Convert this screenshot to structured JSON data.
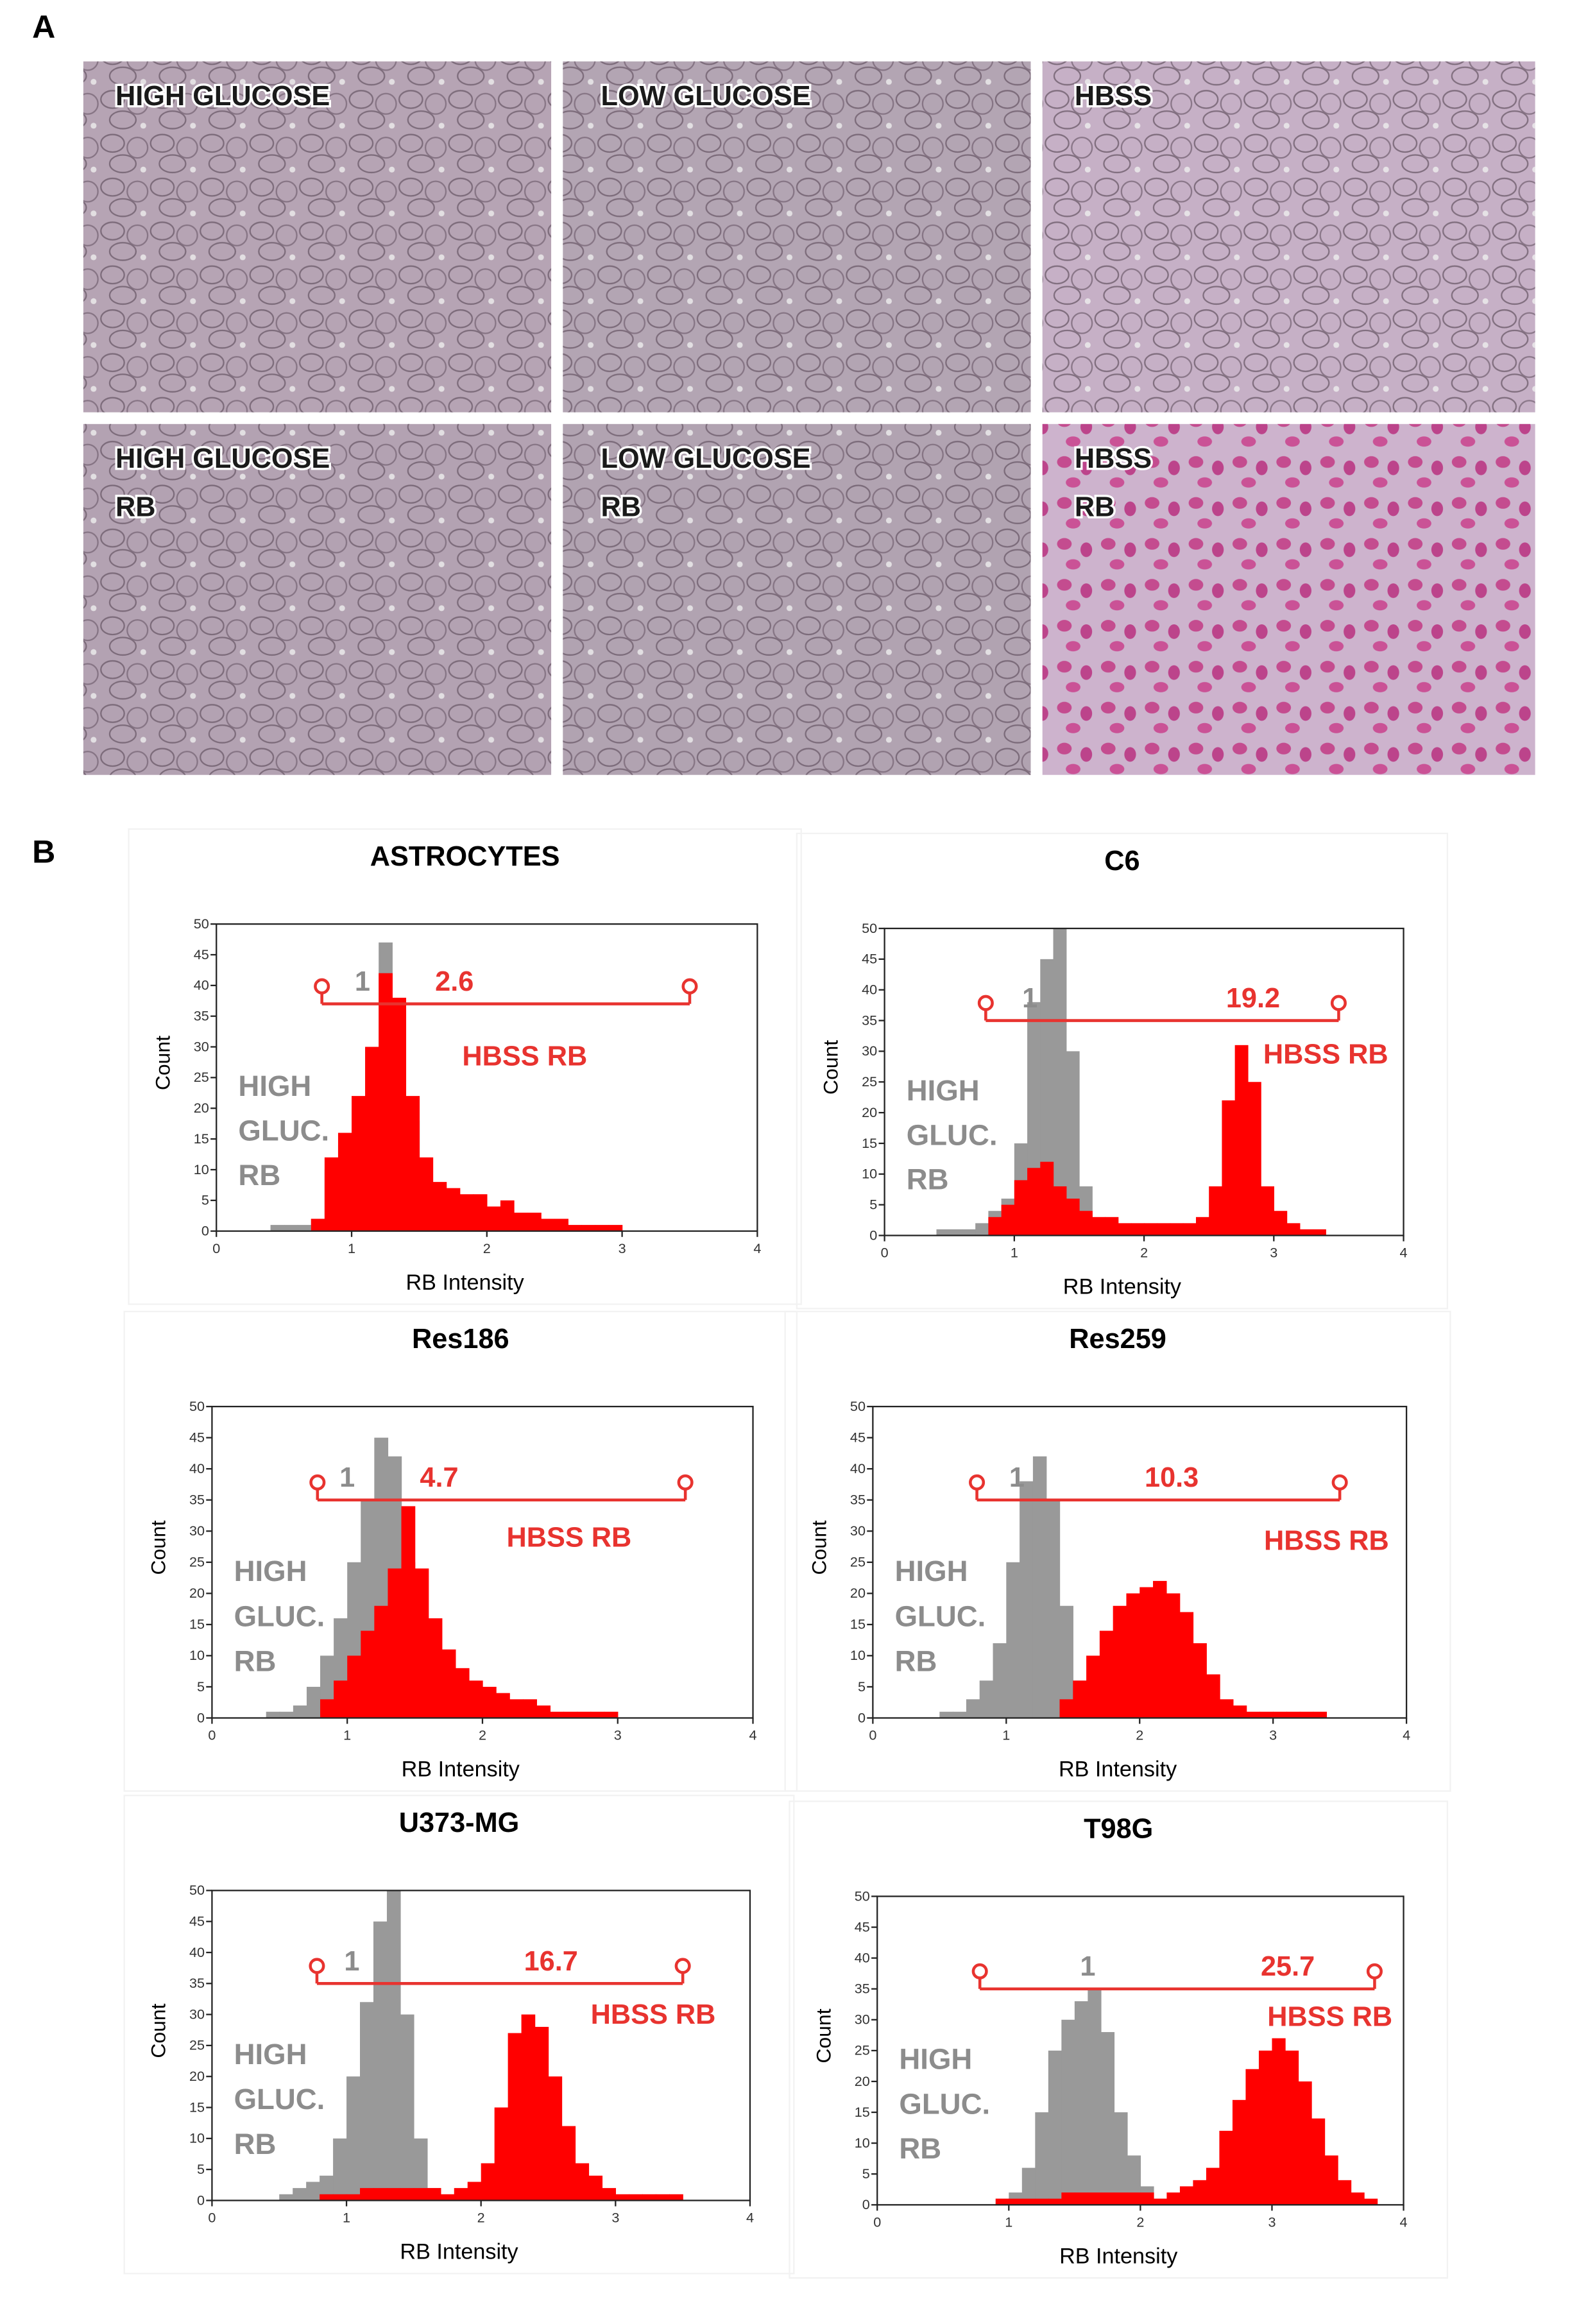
{
  "panel_a": {
    "label": "A",
    "images": [
      {
        "lines": [
          "HIGH GLUCOSE"
        ]
      },
      {
        "lines": [
          "LOW GLUCOSE"
        ]
      },
      {
        "lines": [
          "HBSS"
        ]
      },
      {
        "lines": [
          "HIGH GLUCOSE",
          "RB"
        ]
      },
      {
        "lines": [
          "LOW GLUCOSE",
          "RB"
        ]
      },
      {
        "lines": [
          "HBSS",
          "RB"
        ]
      }
    ]
  },
  "panel_b": {
    "label": "B",
    "xlabel": "RB Intensity",
    "ylabel": "Count",
    "xlim": [
      0,
      4
    ],
    "ylim": [
      0,
      50
    ],
    "xticks": [
      0,
      1,
      2,
      3,
      4
    ],
    "yticks": [
      0,
      5,
      10,
      15,
      20,
      25,
      30,
      35,
      40,
      45,
      50
    ],
    "bins": [
      0,
      0.1,
      0.2,
      0.3,
      0.4,
      0.5,
      0.6,
      0.7,
      0.8,
      0.9,
      1,
      1.1,
      1.2,
      1.3,
      1.4,
      1.5,
      1.6,
      1.7,
      1.8,
      1.9,
      2,
      2.1,
      2.2,
      2.3,
      2.4,
      2.5,
      2.6,
      2.7,
      2.8,
      2.9,
      3,
      3.1,
      3.2,
      3.3,
      3.4,
      3.5,
      3.6,
      3.7,
      3.8,
      3.9,
      4
    ],
    "charts": [
      {
        "type": "histogram",
        "title": "ASTROCYTES",
        "gate": [
          0.78,
          3.5
        ],
        "gate_y": 37,
        "gate_labels": [
          1,
          2.6
        ],
        "series": [
          {
            "name": [
              "HIGH",
              "GLUC.",
              "RB"
            ],
            "color": "#999999",
            "values": [
              0,
              0,
              0,
              0,
              1,
              1,
              1,
              2,
              10,
              14,
              20,
              30,
              47,
              36,
              18,
              6,
              2,
              1,
              0,
              0,
              0,
              0,
              0,
              0,
              0,
              0,
              0,
              0,
              0,
              0,
              0,
              0,
              0,
              0,
              0,
              0,
              0,
              0,
              0,
              0
            ]
          },
          {
            "name": "HBSS RB",
            "color": "#ff0000",
            "values": [
              0,
              0,
              0,
              0,
              0,
              0,
              0,
              2,
              12,
              16,
              22,
              30,
              42,
              38,
              22,
              12,
              8,
              7,
              6,
              6,
              4,
              5,
              3,
              3,
              2,
              2,
              1,
              1,
              1,
              1,
              0,
              0,
              0,
              0,
              0,
              0,
              0,
              0,
              0,
              0
            ]
          }
        ]
      },
      {
        "type": "histogram",
        "title": "C6",
        "gate": [
          0.78,
          3.5
        ],
        "gate_y": 35,
        "gate_labels": [
          1,
          19.2
        ],
        "series": [
          {
            "name": [
              "HIGH",
              "GLUC.",
              "RB"
            ],
            "color": "#999999",
            "values": [
              0,
              0,
              0,
              0,
              1,
              1,
              1,
              2,
              4,
              6,
              15,
              38,
              45,
              50,
              30,
              8,
              2,
              0,
              0,
              0,
              0,
              0,
              0,
              0,
              0,
              0,
              0,
              0,
              0,
              0,
              0,
              0,
              0,
              0,
              0,
              0,
              0,
              0,
              0,
              0
            ]
          },
          {
            "name": "HBSS RB",
            "color": "#ff0000",
            "values": [
              0,
              0,
              0,
              0,
              0,
              0,
              0,
              0,
              3,
              5,
              9,
              11,
              12,
              8,
              6,
              4,
              3,
              3,
              2,
              2,
              2,
              2,
              2,
              2,
              3,
              8,
              22,
              31,
              25,
              8,
              4,
              2,
              1,
              1,
              0,
              0,
              0,
              0,
              0,
              0
            ]
          }
        ]
      },
      {
        "type": "histogram",
        "title": "Res186",
        "gate": [
          0.78,
          3.5
        ],
        "gate_y": 35,
        "gate_labels": [
          1,
          4.7
        ],
        "series": [
          {
            "name": [
              "HIGH",
              "GLUC.",
              "RB"
            ],
            "color": "#999999",
            "values": [
              0,
              0,
              0,
              0,
              1,
              1,
              2,
              5,
              10,
              16,
              25,
              35,
              45,
              42,
              25,
              10,
              3,
              1,
              0,
              0,
              0,
              0,
              0,
              0,
              0,
              0,
              0,
              0,
              0,
              0,
              0,
              0,
              0,
              0,
              0,
              0,
              0,
              0,
              0,
              0
            ]
          },
          {
            "name": "HBSS RB",
            "color": "#ff0000",
            "values": [
              0,
              0,
              0,
              0,
              0,
              0,
              0,
              0,
              3,
              6,
              10,
              14,
              18,
              24,
              34,
              24,
              16,
              11,
              8,
              6,
              5,
              4,
              3,
              3,
              2,
              1,
              1,
              1,
              1,
              1,
              0,
              0,
              0,
              0,
              0,
              0,
              0,
              0,
              0,
              0
            ]
          }
        ]
      },
      {
        "type": "histogram",
        "title": "Res259",
        "gate": [
          0.78,
          3.5
        ],
        "gate_y": 35,
        "gate_labels": [
          1,
          10.3
        ],
        "series": [
          {
            "name": [
              "HIGH",
              "GLUC.",
              "RB"
            ],
            "color": "#999999",
            "values": [
              0,
              0,
              0,
              0,
              0,
              1,
              1,
              3,
              6,
              12,
              25,
              38,
              42,
              35,
              18,
              6,
              2,
              0,
              0,
              0,
              0,
              0,
              0,
              0,
              0,
              0,
              0,
              0,
              0,
              0,
              0,
              0,
              0,
              0,
              0,
              0,
              0,
              0,
              0,
              0
            ]
          },
          {
            "name": "HBSS RB",
            "color": "#ff0000",
            "values": [
              0,
              0,
              0,
              0,
              0,
              0,
              0,
              0,
              0,
              0,
              0,
              0,
              0,
              0,
              3,
              6,
              10,
              14,
              18,
              20,
              21,
              22,
              20,
              17,
              12,
              7,
              3,
              2,
              1,
              1,
              1,
              1,
              1,
              1,
              0,
              0,
              0,
              0,
              0,
              0
            ]
          }
        ]
      },
      {
        "type": "histogram",
        "title": "U373-MG",
        "gate": [
          0.78,
          3.5
        ],
        "gate_y": 35,
        "gate_labels": [
          1,
          16.7
        ],
        "series": [
          {
            "name": [
              "HIGH",
              "GLUC.",
              "RB"
            ],
            "color": "#999999",
            "values": [
              0,
              0,
              0,
              0,
              0,
              1,
              2,
              3,
              4,
              10,
              20,
              32,
              45,
              50,
              30,
              10,
              2,
              0,
              0,
              0,
              0,
              0,
              0,
              0,
              0,
              0,
              0,
              0,
              0,
              0,
              0,
              0,
              0,
              0,
              0,
              0,
              0,
              0,
              0,
              0
            ]
          },
          {
            "name": "HBSS RB",
            "color": "#ff0000",
            "values": [
              0,
              0,
              0,
              0,
              0,
              0,
              0,
              0,
              1,
              1,
              1,
              2,
              2,
              2,
              2,
              2,
              2,
              1,
              2,
              3,
              6,
              15,
              27,
              30,
              28,
              20,
              12,
              6,
              4,
              2,
              1,
              1,
              1,
              1,
              1,
              0,
              0,
              0,
              0,
              0
            ]
          }
        ]
      },
      {
        "type": "histogram",
        "title": "T98G",
        "gate": [
          0.78,
          3.78
        ],
        "gate_y": 35,
        "gate_labels": [
          1,
          25.7
        ],
        "series": [
          {
            "name": [
              "HIGH",
              "GLUC.",
              "RB"
            ],
            "color": "#999999",
            "values": [
              0,
              0,
              0,
              0,
              0,
              0,
              0,
              0,
              0,
              1,
              2,
              6,
              15,
              25,
              30,
              33,
              35,
              28,
              15,
              8,
              3,
              1,
              0,
              0,
              0,
              0,
              0,
              0,
              0,
              0,
              0,
              0,
              0,
              0,
              0,
              0,
              0,
              0,
              0,
              0
            ]
          },
          {
            "name": "HBSS RB",
            "color": "#ff0000",
            "values": [
              0,
              0,
              0,
              0,
              0,
              0,
              0,
              0,
              0,
              1,
              1,
              1,
              1,
              1,
              2,
              2,
              2,
              2,
              2,
              2,
              2,
              1,
              2,
              3,
              4,
              6,
              12,
              17,
              22,
              25,
              27,
              25,
              20,
              14,
              8,
              4,
              2,
              1,
              0,
              0
            ]
          }
        ]
      }
    ]
  }
}
